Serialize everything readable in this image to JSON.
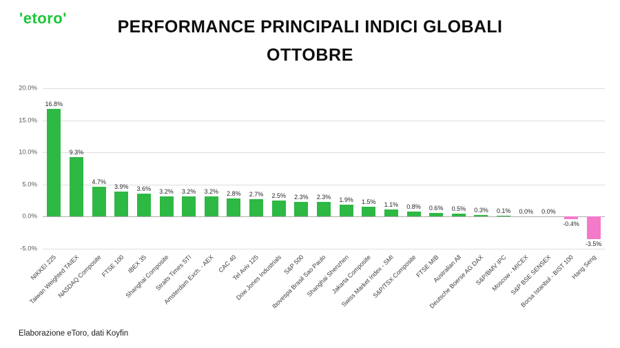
{
  "logo": {
    "text": "'etoro'"
  },
  "footer": {
    "source": "Elaborazione eToro, dati Koyfin"
  },
  "chart_data": {
    "type": "bar",
    "title": "PERFORMANCE PRINCIPALI INDICI GLOBALI",
    "subtitle": "OTTOBRE",
    "categories": [
      "NIKKEI 225",
      "Taiwan Weighted TAIEX",
      "NASDAQ Composite",
      "FTSE 100",
      "IBEX 35",
      "Shanghai Composite",
      "Straits Times STI",
      "Amsterdam Exch. - AEX",
      "CAC 40",
      "Tel Aviv 125",
      "Dow Jones Industrials",
      "S&P 500",
      "Ibovespa Brasil Sao Paulo",
      "Shanghai Shenzhen",
      "Jakarta Composite",
      "Swiss Market Index - SMI",
      "S&P/TSX Composite",
      "FTSE MIB",
      "Australian All",
      "Deutsche Boerse AG DAX",
      "S&P/BMV IPC",
      "Moscow - MICEX",
      "S&P BSE SENSEX",
      "Borsa Istanbul - BIST 100",
      "Hang Seng"
    ],
    "values": [
      16.8,
      9.3,
      4.7,
      3.9,
      3.6,
      3.2,
      3.2,
      3.2,
      2.8,
      2.7,
      2.5,
      2.3,
      2.3,
      1.9,
      1.5,
      1.1,
      0.8,
      0.6,
      0.5,
      0.3,
      0.1,
      0.0,
      0.0,
      -0.4,
      -3.5
    ],
    "ylim": [
      -5,
      20
    ],
    "yticks": [
      20,
      15,
      10,
      5,
      0,
      -5
    ],
    "grid": true,
    "legend": false,
    "positive_color": "#2eb844",
    "negative_color": "#f379c9",
    "xlabel": "",
    "ylabel": ""
  }
}
